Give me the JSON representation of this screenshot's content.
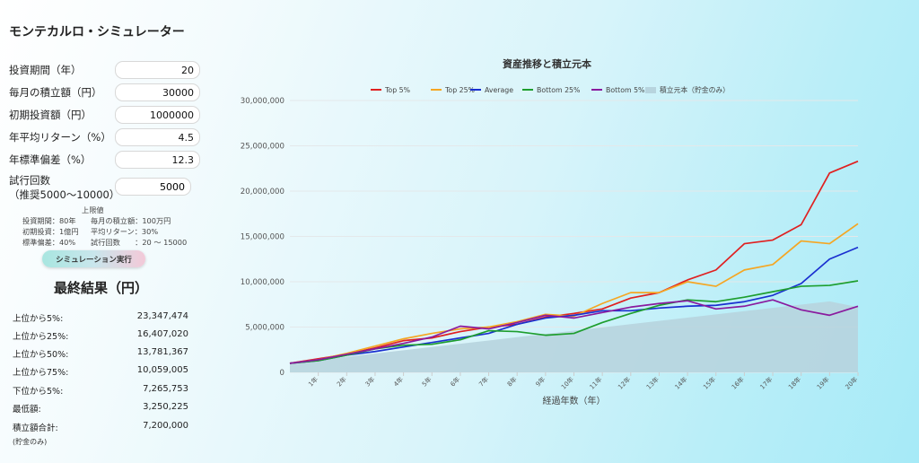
{
  "app_title": "モンテカルロ・シミュレーター",
  "form": {
    "years": {
      "label": "投資期間（年）",
      "value": "20"
    },
    "monthly": {
      "label": "毎月の積立額（円）",
      "value": "30000"
    },
    "initial": {
      "label": "初期投資額（円）",
      "value": "1000000"
    },
    "return": {
      "label": "年平均リターン（%）",
      "value": "4.5"
    },
    "stdev": {
      "label": "年標準偏差（%）",
      "value": "12.3"
    },
    "trials": {
      "label_line1": "試行回数",
      "label_line2": "（推奨5000〜10000）",
      "value": "5000"
    }
  },
  "limits": {
    "header": "上限値",
    "row1_left": "投資期間：80年",
    "row1_right": "毎月の積立額：100万円",
    "row2_left": "初期投資：1億円",
    "row2_right": "平均リターン：30%",
    "row3_left": "標準偏差：40%",
    "row3_right": "試行回数　　：20 〜 15000"
  },
  "run_button": "シミュレーション実行",
  "results": {
    "title": "最終結果（円）",
    "rows": [
      {
        "label": "上位から5%:",
        "value": "23,347,474"
      },
      {
        "label": "上位から25%:",
        "value": "16,407,020"
      },
      {
        "label": "上位から50%:",
        "value": "13,781,367"
      },
      {
        "label": "上位から75%:",
        "value": "10,059,005"
      },
      {
        "label": "下位から5%:",
        "value": "7,265,753"
      },
      {
        "label": "最低額:",
        "value": "3,250,225"
      },
      {
        "label": "積立額合計:",
        "value": "7,200,000"
      }
    ],
    "note": "(貯金のみ)"
  },
  "chart_data": {
    "type": "line",
    "title": "資産推移と積立元本",
    "xlabel": "経過年数（年）",
    "ylabel": "",
    "ylim": [
      0,
      30000000
    ],
    "yticks": [
      "0",
      "5,000,000",
      "10,000,000",
      "15,000,000",
      "20,000,000",
      "25,000,000",
      "30,000,000"
    ],
    "x_labels": [
      "1年",
      "2年",
      "3年",
      "4年",
      "5年",
      "6年",
      "7年",
      "8年",
      "9年",
      "10年",
      "11年",
      "12年",
      "13年",
      "14年",
      "15年",
      "16年",
      "17年",
      "18年",
      "19年",
      "20年"
    ],
    "x": [
      0,
      1,
      2,
      3,
      4,
      5,
      6,
      7,
      8,
      9,
      10,
      11,
      12,
      13,
      14,
      15,
      16,
      17,
      18,
      19,
      20
    ],
    "legend_position": "top",
    "grid": true,
    "series": [
      {
        "name": "Top 5%",
        "color": "#e02020",
        "values": [
          1000000,
          1500000,
          2000000,
          2700000,
          3500000,
          3800000,
          4500000,
          5000000,
          5300000,
          6100000,
          6500000,
          7000000,
          8200000,
          8800000,
          10200000,
          11300000,
          14200000,
          14600000,
          16300000,
          22000000,
          23300000
        ]
      },
      {
        "name": "Top 25%",
        "color": "#f5a623",
        "values": [
          1000000,
          1400000,
          2100000,
          2900000,
          3700000,
          4300000,
          4800000,
          5000000,
          5600000,
          6400000,
          6200000,
          7600000,
          8800000,
          8800000,
          10000000,
          9500000,
          11300000,
          11900000,
          14500000,
          14200000,
          16400000
        ]
      },
      {
        "name": "Average",
        "color": "#1a2fd0",
        "values": [
          1000000,
          1300000,
          1900000,
          2300000,
          2800000,
          3300000,
          3800000,
          4300000,
          5300000,
          6000000,
          6300000,
          6800000,
          6800000,
          7100000,
          7300000,
          7400000,
          7800000,
          8500000,
          9800000,
          12500000,
          13800000
        ]
      },
      {
        "name": "Bottom 25%",
        "color": "#1e9e2e",
        "values": [
          1000000,
          1300000,
          1900000,
          2600000,
          3000000,
          3100000,
          3600000,
          4600000,
          4500000,
          4100000,
          4300000,
          5500000,
          6500000,
          7400000,
          8000000,
          7800000,
          8300000,
          8900000,
          9500000,
          9600000,
          10100000
        ]
      },
      {
        "name": "Bottom 5%",
        "color": "#8a1a9e",
        "values": [
          1000000,
          1400000,
          2000000,
          2600000,
          3200000,
          3900000,
          5100000,
          4800000,
          5500000,
          6300000,
          6000000,
          6600000,
          7200000,
          7600000,
          7900000,
          7000000,
          7300000,
          8000000,
          6900000,
          6300000,
          7300000
        ]
      },
      {
        "name": "積立元本（貯金のみ）",
        "color": "#b7d4de",
        "values": [
          1000000,
          1360000,
          1720000,
          2080000,
          2440000,
          2800000,
          3160000,
          3520000,
          3880000,
          4240000,
          4600000,
          4960000,
          5320000,
          5680000,
          6040000,
          6400000,
          6760000,
          7120000,
          7480000,
          7840000,
          7200000
        ],
        "fill": true
      }
    ]
  }
}
